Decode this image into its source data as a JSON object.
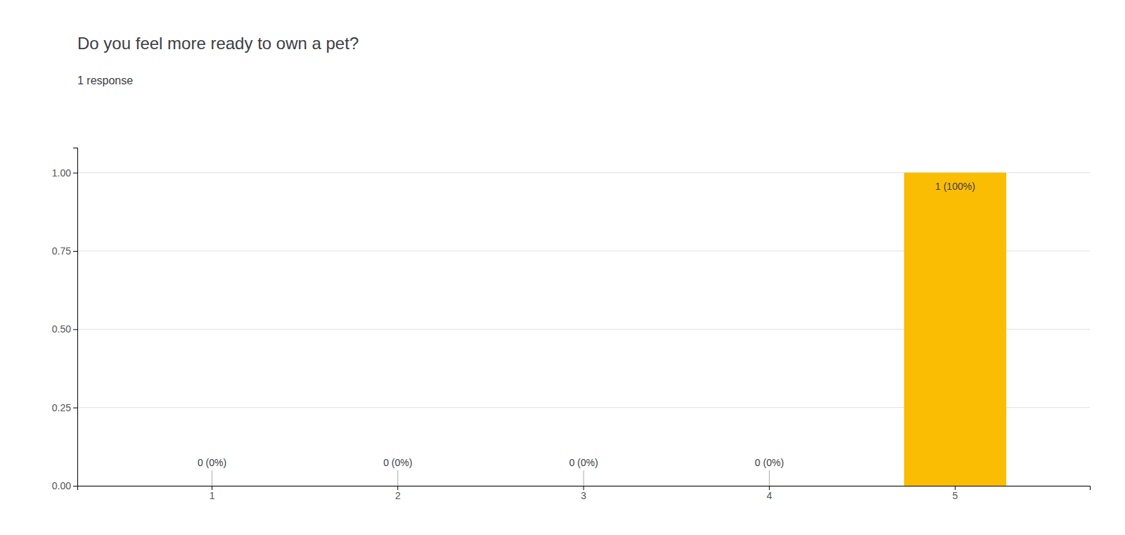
{
  "chart_data": {
    "type": "bar",
    "title": "Do you feel more ready to own a pet?",
    "subtitle": "1 response",
    "categories": [
      1,
      2,
      3,
      4,
      5
    ],
    "values": [
      0,
      0,
      0,
      0,
      1.0
    ],
    "value_labels": [
      "0 (0%)",
      "0 (0%)",
      "0 (0%)",
      "0 (0%)",
      "1 (100%)"
    ],
    "data_labels": true,
    "color": "#FBBC04",
    "ylim": [
      0,
      1.08
    ],
    "yticks": [
      {
        "value": 0.0,
        "label": "0.00"
      },
      0.25,
      {
        "value": 0.5,
        "label": "0.50"
      },
      0.75,
      {
        "value": 1.0,
        "label": "1.00"
      }
    ],
    "grid": true
  }
}
